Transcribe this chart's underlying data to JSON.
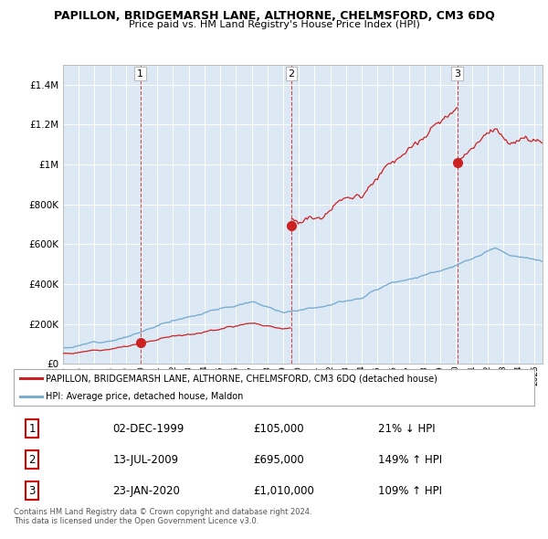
{
  "title": "PAPILLON, BRIDGEMARSH LANE, ALTHORNE, CHELMSFORD, CM3 6DQ",
  "subtitle": "Price paid vs. HM Land Registry's House Price Index (HPI)",
  "background_color": "#ffffff",
  "plot_bg_color": "#dce9f5",
  "grid_color": "#ffffff",
  "red_line_color": "#cc2222",
  "blue_line_color": "#7aadcf",
  "transactions": [
    {
      "num": 1,
      "date_str": "02-DEC-1999",
      "year": 1999.92,
      "price": 105000,
      "pct": "21%",
      "dir": "↓"
    },
    {
      "num": 2,
      "date_str": "13-JUL-2009",
      "year": 2009.53,
      "price": 695000,
      "pct": "149%",
      "dir": "↑"
    },
    {
      "num": 3,
      "date_str": "23-JAN-2020",
      "year": 2020.07,
      "price": 1010000,
      "pct": "109%",
      "dir": "↑"
    }
  ],
  "legend_label_red": "PAPILLON, BRIDGEMARSH LANE, ALTHORNE, CHELMSFORD, CM3 6DQ (detached house)",
  "legend_label_blue": "HPI: Average price, detached house, Maldon",
  "footer_line1": "Contains HM Land Registry data © Crown copyright and database right 2024.",
  "footer_line2": "This data is licensed under the Open Government Licence v3.0.",
  "table_rows": [
    [
      1,
      "02-DEC-1999",
      "£105,000",
      "21% ↓ HPI"
    ],
    [
      2,
      "13-JUL-2009",
      "£695,000",
      "149% ↑ HPI"
    ],
    [
      3,
      "23-JAN-2020",
      "£1,010,000",
      "109% ↑ HPI"
    ]
  ],
  "ylim": [
    0,
    1500000
  ],
  "xlim_start": 1995.0,
  "xlim_end": 2025.5
}
